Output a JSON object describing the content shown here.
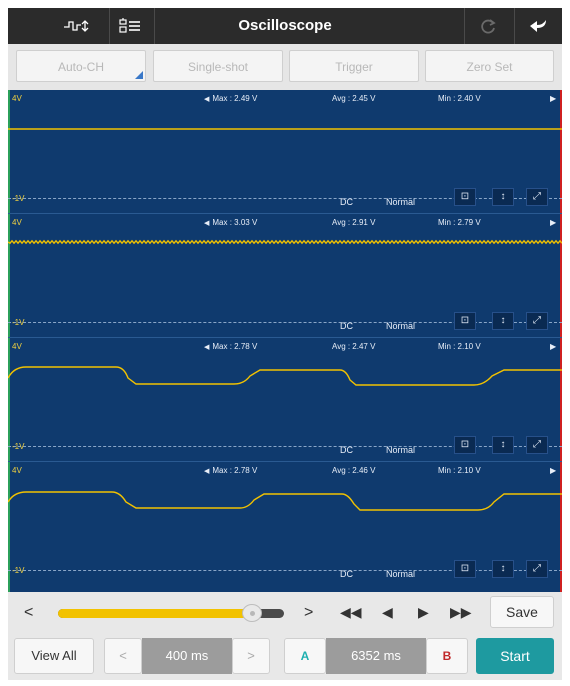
{
  "app": {
    "title": "Oscilloscope"
  },
  "toolbar": {
    "waveform_icon": "waveform-settings-icon",
    "config_icon": "channel-config-icon",
    "refresh_icon": "refresh-icon",
    "back_icon": "back-icon"
  },
  "top_buttons": {
    "auto_ch": "Auto-CH",
    "single_shot": "Single-shot",
    "trigger": "Trigger",
    "zero_set": "Zero Set"
  },
  "channels": [
    {
      "top_label": "4V",
      "bottom_label": "-1V",
      "max": "Max : 2.49 V",
      "avg": "Avg : 2.45 V",
      "min": "Min : 2.40 V",
      "coupling": "DC",
      "mode": "Normal"
    },
    {
      "top_label": "4V",
      "bottom_label": "-1V",
      "max": "Max : 3.03 V",
      "avg": "Avg : 2.91 V",
      "min": "Min : 2.79 V",
      "coupling": "DC",
      "mode": "Normal"
    },
    {
      "top_label": "4V",
      "bottom_label": "-1V",
      "max": "Max : 2.78 V",
      "avg": "Avg : 2.47 V",
      "min": "Min : 2.10 V",
      "coupling": "DC",
      "mode": "Normal"
    },
    {
      "top_label": "4V",
      "bottom_label": "-1V",
      "max": "Max : 2.78 V",
      "avg": "Avg : 2.46 V",
      "min": "Min : 2.10 V",
      "coupling": "DC",
      "mode": "Normal"
    }
  ],
  "playback": {
    "prev": "<",
    "next": ">",
    "rewind": "◀◀",
    "step_back": "◀",
    "play": "▶",
    "fast_forward": "▶▶",
    "save": "Save",
    "position": 0.86
  },
  "bottom": {
    "view_all": "View All",
    "dec": "<",
    "timebase": "400 ms",
    "inc": ">",
    "cursor_a": "A",
    "cursor_time": "6352 ms",
    "cursor_b": "B",
    "start": "Start"
  },
  "colors": {
    "trace": "#f2c200",
    "screen": "#0f3a6e",
    "cursor_a": "#1eb0b0",
    "cursor_b": "#c0282a",
    "start": "#1e9aa0"
  }
}
